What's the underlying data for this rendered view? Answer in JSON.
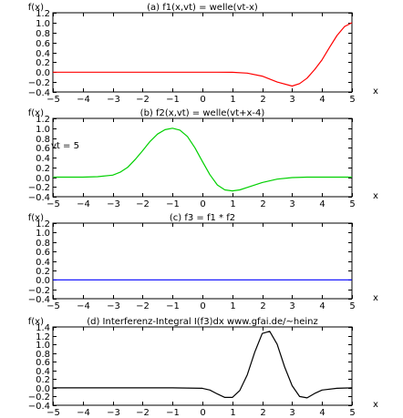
{
  "colors": {
    "series": [
      "#ff0000",
      "#00d000",
      "#0000ff",
      "#000000"
    ]
  },
  "chart_data": [
    {
      "type": "line",
      "title": "(a) f1(x,vt) = welle(vt-x)",
      "ylabel": "f(x)",
      "xlabel": "x",
      "annotation": "",
      "xlim": [
        -5,
        5
      ],
      "ylim": [
        -0.4,
        1.2
      ],
      "xticks": [
        -5,
        -4,
        -3,
        -2,
        -1,
        0,
        1,
        2,
        3,
        4,
        5
      ],
      "yticks": [
        -0.4,
        -0.2,
        0.0,
        0.2,
        0.4,
        0.6,
        0.8,
        1.0,
        1.2
      ],
      "series": [
        {
          "x": [
            -5,
            -4,
            -3,
            -2,
            -1,
            0,
            0.5,
            1.0,
            1.5,
            2.0,
            2.5,
            3.0,
            3.25,
            3.5,
            3.75,
            4.0,
            4.25,
            4.5,
            4.75,
            5.0
          ],
          "y": [
            0,
            0,
            0,
            0,
            0,
            0,
            0,
            -0.002,
            -0.02,
            -0.08,
            -0.2,
            -0.28,
            -0.23,
            -0.12,
            0.05,
            0.25,
            0.5,
            0.74,
            0.92,
            1.0
          ]
        }
      ]
    },
    {
      "type": "line",
      "title": "(b) f2(x,vt) = welle(vt+x-4)",
      "ylabel": "f(x)",
      "xlabel": "x",
      "annotation": "vt = 5",
      "xlim": [
        -5,
        5
      ],
      "ylim": [
        -0.4,
        1.2
      ],
      "xticks": [
        -5,
        -4,
        -3,
        -2,
        -1,
        0,
        1,
        2,
        3,
        4,
        5
      ],
      "yticks": [
        -0.4,
        -0.2,
        0.0,
        0.2,
        0.4,
        0.6,
        0.8,
        1.0,
        1.2
      ],
      "series": [
        {
          "x": [
            -5,
            -4,
            -3.5,
            -3.0,
            -2.75,
            -2.5,
            -2.25,
            -2.0,
            -1.75,
            -1.5,
            -1.25,
            -1.0,
            -0.75,
            -0.5,
            -0.25,
            0.0,
            0.25,
            0.5,
            0.75,
            1.0,
            1.25,
            1.5,
            2.0,
            2.5,
            3.0,
            3.5,
            4.0,
            5.0
          ],
          "y": [
            0,
            0,
            0.01,
            0.04,
            0.1,
            0.2,
            0.36,
            0.54,
            0.73,
            0.88,
            0.97,
            1.0,
            0.96,
            0.83,
            0.6,
            0.32,
            0.05,
            -0.16,
            -0.26,
            -0.28,
            -0.26,
            -0.21,
            -0.11,
            -0.04,
            -0.01,
            0,
            0,
            0
          ]
        }
      ]
    },
    {
      "type": "line",
      "title": "(c) f3 = f1 * f2",
      "ylabel": "f(x)",
      "xlabel": "x",
      "annotation": "",
      "xlim": [
        -5,
        5
      ],
      "ylim": [
        -0.4,
        1.2
      ],
      "xticks": [
        -5,
        -4,
        -3,
        -2,
        -1,
        0,
        1,
        2,
        3,
        4,
        5
      ],
      "yticks": [
        -0.4,
        -0.2,
        0.0,
        0.2,
        0.4,
        0.6,
        0.8,
        1.0,
        1.2
      ],
      "series": [
        {
          "x": [
            -5,
            5
          ],
          "y": [
            0,
            0
          ]
        }
      ]
    },
    {
      "type": "line",
      "title": "(d) Interferenz-Integral I(f3)dx   www.gfai.de/~heinz",
      "ylabel": "f(x)",
      "xlabel": "x",
      "annotation": "",
      "xlim": [
        -5,
        5
      ],
      "ylim": [
        -0.4,
        1.4
      ],
      "xticks": [
        -5,
        -4,
        -3,
        -2,
        -1,
        0,
        1,
        2,
        3,
        4,
        5
      ],
      "yticks": [
        -0.4,
        -0.2,
        0.0,
        0.2,
        0.4,
        0.6,
        0.8,
        1.0,
        1.2,
        1.4
      ],
      "series": [
        {
          "x": [
            -5,
            -1,
            0,
            0.25,
            0.5,
            0.75,
            1.0,
            1.25,
            1.5,
            1.75,
            2.0,
            2.25,
            2.5,
            2.75,
            3.0,
            3.25,
            3.5,
            3.75,
            4.0,
            4.5,
            5.0
          ],
          "y": [
            0,
            0,
            -0.01,
            -0.05,
            -0.14,
            -0.22,
            -0.22,
            -0.06,
            0.3,
            0.82,
            1.25,
            1.3,
            1.0,
            0.48,
            0.05,
            -0.2,
            -0.23,
            -0.13,
            -0.05,
            -0.01,
            0
          ]
        }
      ]
    }
  ]
}
